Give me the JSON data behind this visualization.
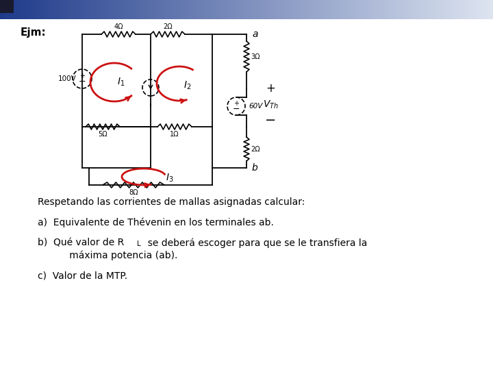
{
  "title": "Ejm:",
  "bg_color": "#ffffff",
  "header_left_color": "#1e3a8a",
  "header_right_color": "#dde4f0",
  "dark_square_color": "#1a1a2e",
  "text_color": "#000000",
  "red_color": "#cc1111",
  "line1": "Respetando las corrientes de mallas asignadas calcular:",
  "line2a": "a)  Equivalente de Thévenin en los terminales ab.",
  "line3b1": "b)  Qué valor de R",
  "line3b_sub": "L",
  "line3b2": "  se deberá escoger para que se le transfiera la",
  "line3b3": "      máxima potencia (ab).",
  "line4c": "c)  Valor de la MTP."
}
